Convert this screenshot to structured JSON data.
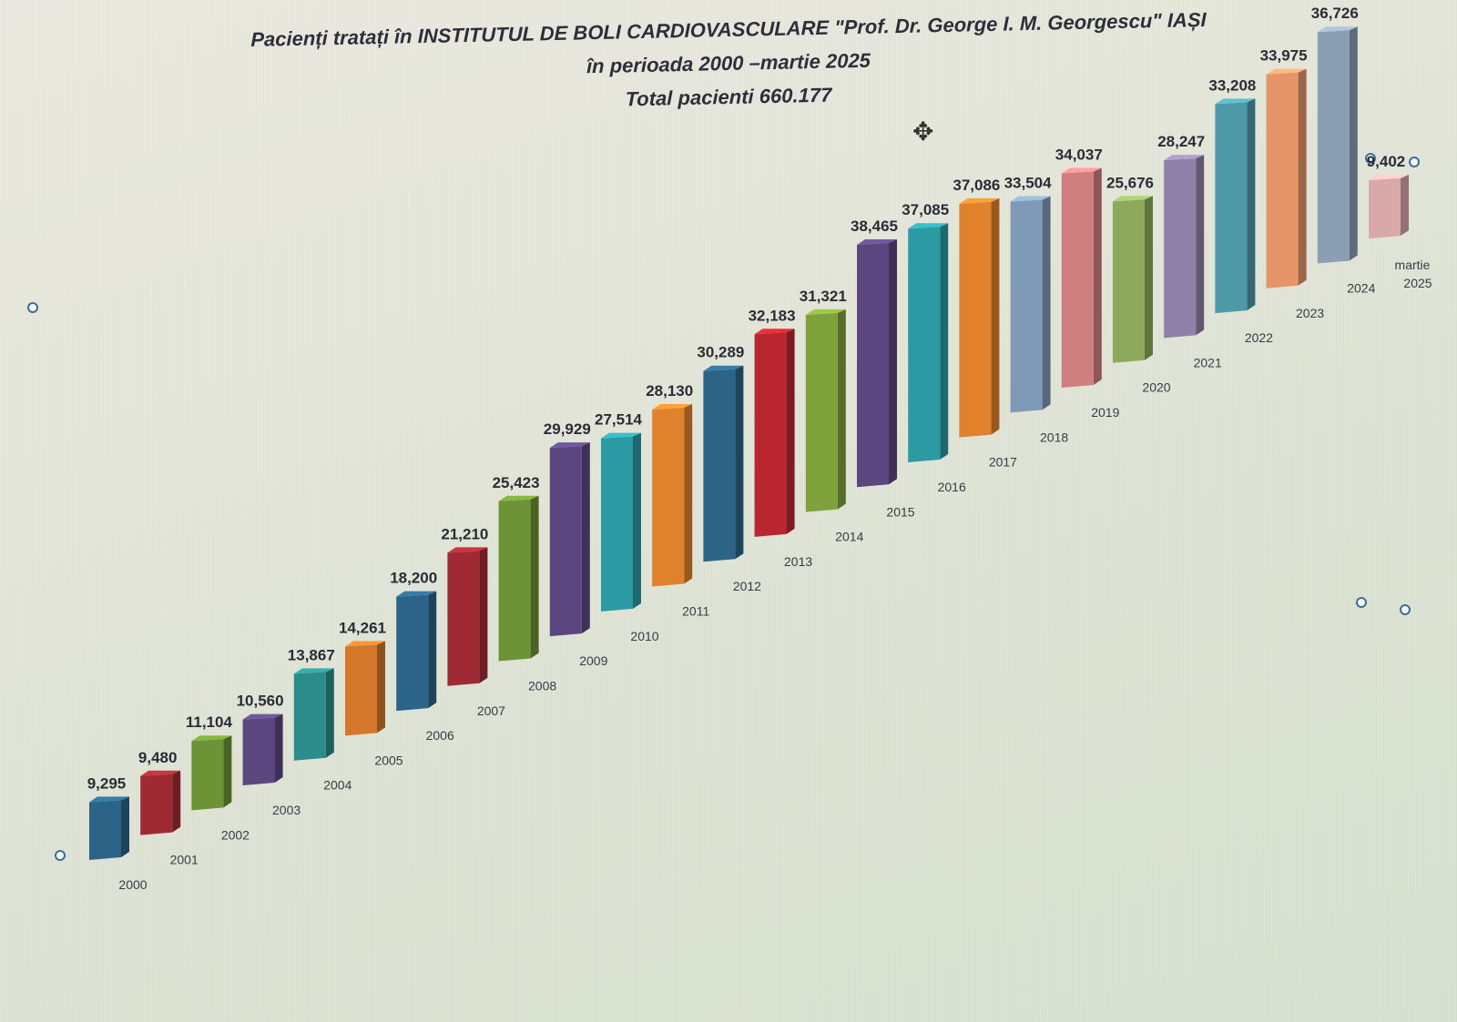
{
  "chart_data": {
    "type": "bar",
    "title": "Pacienți tratați în INSTITUTUL DE BOLI CARDIOVASCULARE \"Prof. Dr. George I. M. Georgescu\" IAȘI",
    "subtitle": "în perioada 2000 –martie  2025",
    "total_label": "Total pacienti 660.177",
    "categories": [
      "2000",
      "2001",
      "2002",
      "2003",
      "2004",
      "2005",
      "2006",
      "2007",
      "2008",
      "2009",
      "2010",
      "2011",
      "2012",
      "2013",
      "2014",
      "2015",
      "2016",
      "2017",
      "2018",
      "2019",
      "2020",
      "2021",
      "2022",
      "2023",
      "2024",
      "martie 2025"
    ],
    "values": [
      9295,
      9480,
      11104,
      10560,
      13867,
      14261,
      18200,
      21210,
      25423,
      29929,
      27514,
      28130,
      30289,
      32183,
      31321,
      38465,
      37085,
      37086,
      33504,
      34037,
      25676,
      28247,
      33208,
      33975,
      36726,
      9402
    ],
    "value_labels": [
      "9,295",
      "9,480",
      "11,104",
      "10,560",
      "13,867",
      "14,261",
      "18,200",
      "21,210",
      "25,423",
      "29,929",
      "27,514",
      "28,130",
      "30,289",
      "32,183",
      "31,321",
      "38,465",
      "37,085",
      "37,086",
      "33,504",
      "34,037",
      "25,676",
      "28,247",
      "33,208",
      "33,975",
      "36,726",
      "9,402"
    ],
    "bar_colors": [
      "#2c6487",
      "#a02a33",
      "#6c9335",
      "#5b4680",
      "#2c8c8a",
      "#d5782c",
      "#2c6487",
      "#a02a33",
      "#6c9335",
      "#5b4680",
      "#2c9aa3",
      "#e0812c",
      "#2c6487",
      "#b9262f",
      "#7ea13c",
      "#5b4680",
      "#2c9aa3",
      "#e0812c",
      "#7e9ab7",
      "#cf7f80",
      "#8daa5c",
      "#8e80a8",
      "#4e99a7",
      "#e59567",
      "#8c9eb4",
      "#d9a8a9"
    ],
    "ylim": [
      0,
      40000
    ],
    "grid": false,
    "legend": "none"
  }
}
